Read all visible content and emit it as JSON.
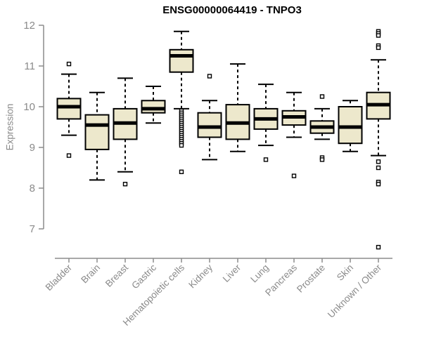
{
  "chart_data": {
    "type": "boxplot",
    "title": "ENSG00000064419 - TNPO3",
    "ylabel": "Expression",
    "xlabel": "",
    "ylim": [
      7,
      12
    ],
    "yticks": [
      7,
      8,
      9,
      10,
      11,
      12
    ],
    "grid": false,
    "legend": "none",
    "colors": {
      "box_fill": "#EDE8CC",
      "box_border": "#000000",
      "median": "#000000",
      "whisker": "#000000",
      "outlier_stroke": "#000000",
      "outlier_fill": "#FFFFFF",
      "axis": "#8C8C8C",
      "tick_label": "#8A8A8A",
      "title": "#000000",
      "background": "#FFFFFF"
    },
    "categories": [
      "Bladder",
      "Brain",
      "Breast",
      "Gastric",
      "Hematopoietic cells",
      "Kidney",
      "Liver",
      "Lung",
      "Pancreas",
      "Prostate",
      "Skin",
      "Unknown / Other"
    ],
    "series": [
      {
        "name": "Bladder",
        "whisker_low": 9.3,
        "q1": 9.7,
        "median": 10.0,
        "q3": 10.2,
        "whisker_high": 10.8,
        "outliers": [
          11.05,
          8.8
        ]
      },
      {
        "name": "Brain",
        "whisker_low": 8.2,
        "q1": 8.95,
        "median": 9.55,
        "q3": 9.8,
        "whisker_high": 10.35,
        "outliers": []
      },
      {
        "name": "Breast",
        "whisker_low": 8.4,
        "q1": 9.2,
        "median": 9.6,
        "q3": 9.95,
        "whisker_high": 10.7,
        "outliers": [
          8.1
        ]
      },
      {
        "name": "Gastric",
        "whisker_low": 9.6,
        "q1": 9.85,
        "median": 9.95,
        "q3": 10.15,
        "whisker_high": 10.5,
        "outliers": []
      },
      {
        "name": "Hematopoietic cells",
        "whisker_low": 9.95,
        "q1": 10.85,
        "median": 11.25,
        "q3": 11.4,
        "whisker_high": 11.85,
        "outliers": [
          9.9,
          9.85,
          9.8,
          9.75,
          9.7,
          9.65,
          9.6,
          9.55,
          9.5,
          9.45,
          9.4,
          9.35,
          9.3,
          9.25,
          9.2,
          9.15,
          9.1,
          9.05,
          8.4
        ]
      },
      {
        "name": "Kidney",
        "whisker_low": 8.7,
        "q1": 9.25,
        "median": 9.5,
        "q3": 9.85,
        "whisker_high": 10.15,
        "outliers": [
          10.75
        ]
      },
      {
        "name": "Liver",
        "whisker_low": 8.9,
        "q1": 9.2,
        "median": 9.6,
        "q3": 10.05,
        "whisker_high": 11.05,
        "outliers": []
      },
      {
        "name": "Lung",
        "whisker_low": 9.05,
        "q1": 9.45,
        "median": 9.7,
        "q3": 9.95,
        "whisker_high": 10.55,
        "outliers": [
          8.7
        ]
      },
      {
        "name": "Pancreas",
        "whisker_low": 9.25,
        "q1": 9.55,
        "median": 9.75,
        "q3": 9.9,
        "whisker_high": 10.35,
        "outliers": [
          8.3
        ]
      },
      {
        "name": "Prostate",
        "whisker_low": 9.2,
        "q1": 9.35,
        "median": 9.5,
        "q3": 9.65,
        "whisker_high": 9.95,
        "outliers": [
          10.25,
          8.75,
          8.7
        ]
      },
      {
        "name": "Skin",
        "whisker_low": 8.9,
        "q1": 9.1,
        "median": 9.5,
        "q3": 10.0,
        "whisker_high": 10.15,
        "outliers": []
      },
      {
        "name": "Unknown / Other",
        "whisker_low": 8.8,
        "q1": 9.7,
        "median": 10.05,
        "q3": 10.35,
        "whisker_high": 11.15,
        "outliers": [
          11.85,
          11.8,
          11.75,
          11.5,
          11.45,
          8.65,
          8.5,
          8.15,
          8.1,
          6.55
        ]
      }
    ]
  }
}
